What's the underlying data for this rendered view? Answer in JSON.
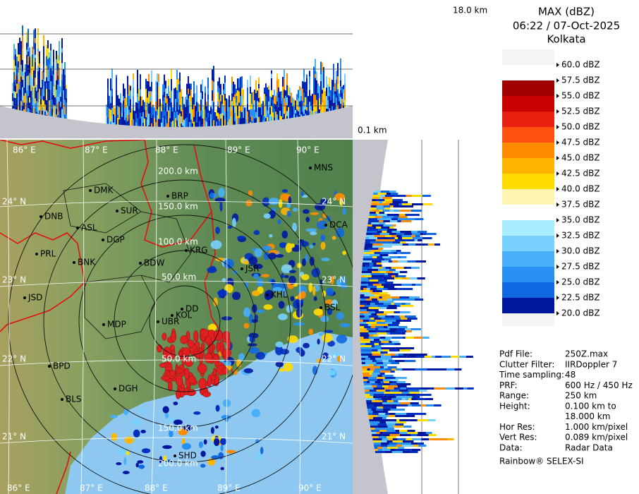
{
  "profile_top": {
    "height_label": "18.0 km"
  },
  "profile_side": {
    "height_label": "0.1 km"
  },
  "header": {
    "product": "MAX (dBZ)",
    "datetime": "06:22 / 07-Oct-2025",
    "site": "Kolkata"
  },
  "scale": [
    {
      "label": "60.0 dBZ",
      "color": "#ffffff"
    },
    {
      "label": "57.5 dBZ",
      "color": "#a00000"
    },
    {
      "label": "55.0 dBZ",
      "color": "#c80000"
    },
    {
      "label": "52.5 dBZ",
      "color": "#e82010"
    },
    {
      "label": "50.0 dBZ",
      "color": "#ff5010"
    },
    {
      "label": "47.5 dBZ",
      "color": "#ff8c00"
    },
    {
      "label": "45.0 dBZ",
      "color": "#ffb400"
    },
    {
      "label": "42.5 dBZ",
      "color": "#ffdc00"
    },
    {
      "label": "40.0 dBZ",
      "color": "#fff5b0"
    },
    {
      "label": "37.5 dBZ",
      "color": "#ffffff"
    },
    {
      "label": "35.0 dBZ",
      "color": "#a8ecff"
    },
    {
      "label": "32.5 dBZ",
      "color": "#78d0ff"
    },
    {
      "label": "30.0 dBZ",
      "color": "#48b0f8"
    },
    {
      "label": "27.5 dBZ",
      "color": "#2890f0"
    },
    {
      "label": "25.0 dBZ",
      "color": "#1068e0"
    },
    {
      "label": "22.5 dBZ",
      "color": "#0030c0"
    },
    {
      "label": "20.0 dBZ",
      "color": "#0018a0"
    }
  ],
  "info": [
    {
      "key": "Pdf File:",
      "value": "250Z.max"
    },
    {
      "key": "Clutter Filter:",
      "value": "IIRDoppler 7"
    },
    {
      "key": "Time sampling:",
      "value": "48"
    },
    {
      "key": "PRF:",
      "value": "600 Hz / 450 Hz"
    },
    {
      "key": "Range:",
      "value": "250 km"
    },
    {
      "key": "Height:",
      "value": [
        "0.100 km to",
        "18.000 km"
      ]
    },
    {
      "key": "Hor Res:",
      "value": "1.000 km/pixel"
    },
    {
      "key": "Vert Res:",
      "value": "0.089 km/pixel"
    },
    {
      "key": "Data:",
      "value": "Radar Data"
    }
  ],
  "footer": "Rainbow® SELEX-SI",
  "map": {
    "lon_labels": [
      "86° E",
      "87° E",
      "88° E",
      "89° E",
      "90° E"
    ],
    "lat_labels": [
      "24° N",
      "23° N",
      "22° N",
      "21° N"
    ],
    "range_labels": [
      "200.0 km",
      "150.0 km",
      "100.0 km",
      "50.0 km",
      "50.0 km",
      "150.0 km",
      "200.0 km"
    ],
    "cities": [
      "MNS",
      "DMK",
      "BRP",
      "DNB",
      "SUR",
      "ASL",
      "DGP",
      "DCA",
      "KRG",
      "PRL",
      "BNK",
      "BDW",
      "JSR",
      "JSD",
      "KHL",
      "BSL",
      "DD",
      "KOL",
      "MDP",
      "UBR",
      "BPD",
      "DGH",
      "BLS",
      "SHD"
    ]
  }
}
